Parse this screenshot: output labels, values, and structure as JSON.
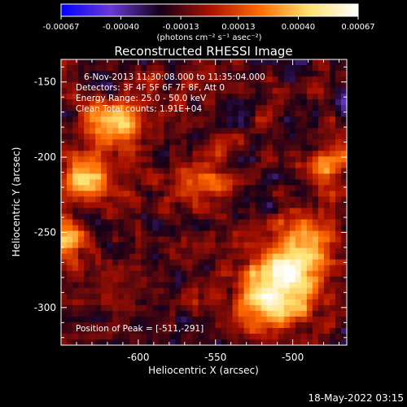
{
  "chart_data": {
    "type": "heatmap",
    "title": "Reconstructed RHESSI Image",
    "xlabel": "Heliocentric X (arcsec)",
    "ylabel": "Heliocentric Y (arcsec)",
    "xlim": [
      -650,
      -465
    ],
    "ylim": [
      -325,
      -135
    ],
    "xticks": [
      -600,
      -550,
      -500
    ],
    "xtick_labels": [
      "-600",
      "-550",
      "-500"
    ],
    "yticks": [
      -150,
      -200,
      -250,
      -300
    ],
    "ytick_labels": [
      "-150",
      "-200",
      "-250",
      "-300"
    ],
    "colorbar": {
      "range": [
        -0.00067,
        0.00067
      ],
      "ticks": [
        -0.00067,
        -0.0004,
        -0.00013,
        0.00013,
        0.0004,
        0.00067
      ],
      "tick_labels": [
        "-0.00067",
        "-0.00040",
        "-0.00013",
        "0.00013",
        "0.00040",
        "0.00067"
      ],
      "unit_label": "(photons cm⁻² s⁻¹ asec⁻²)",
      "colors": [
        "#0000ff",
        "#6a3ad6",
        "#130018",
        "#a81000",
        "#ff6a00",
        "#ffe070",
        "#ffffff"
      ]
    },
    "annotations": {
      "time": "6-Nov-2013 11:30:08.000 to 11:35:04.000",
      "detectors": "Detectors: 3F 4F 5F 6F 7F 8F, Att 0",
      "energy": "Energy Range: 25.0 - 50.0 keV",
      "clean": "Clean     Total counts: 1.91E+04",
      "peak": "Position of Peak = [-511,-291]"
    },
    "peak": [
      -511,
      -291
    ],
    "sources": [
      {
        "x": -511,
        "y": -291,
        "amplitude": 1.0,
        "sigma": 16
      },
      {
        "x": -495,
        "y": -262,
        "amplitude": 0.75,
        "sigma": 14
      },
      {
        "x": -618,
        "y": -176,
        "amplitude": 0.8,
        "sigma": 11
      },
      {
        "x": -632,
        "y": -212,
        "amplitude": 0.7,
        "sigma": 12
      },
      {
        "x": -645,
        "y": -255,
        "amplitude": 0.55,
        "sigma": 10
      },
      {
        "x": -558,
        "y": -218,
        "amplitude": 0.45,
        "sigma": 12
      },
      {
        "x": -473,
        "y": -205,
        "amplitude": 0.55,
        "sigma": 10
      }
    ]
  },
  "footer": {
    "timestamp": "18-May-2022 03:15"
  }
}
